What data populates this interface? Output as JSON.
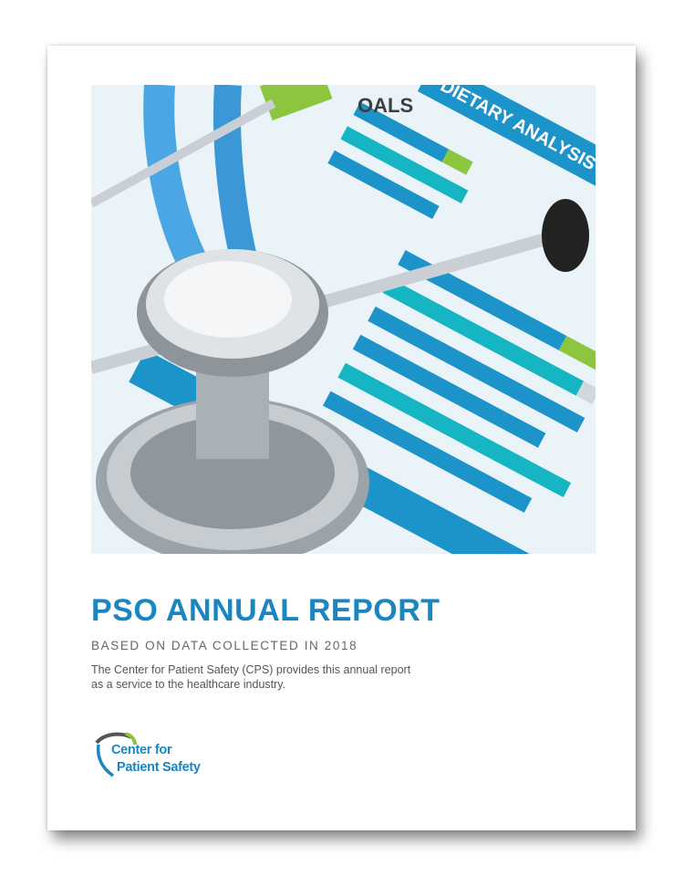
{
  "cover": {
    "photo_labels": {
      "chart_heading": "DIETARY ANALYSIS",
      "corner_heading": "OALS"
    },
    "title": "PSO ANNUAL REPORT",
    "subtitle": "BASED ON DATA COLLECTED IN 2018",
    "description": "The Center for Patient Safety (CPS) provides this annual report as a service to the healthcare industry.",
    "logo": {
      "line1": "Center for",
      "line2": "Patient Safety"
    }
  },
  "colors": {
    "brand_blue": "#1a86c1",
    "accent_green": "#8cc63f",
    "text_gray": "#555555"
  }
}
